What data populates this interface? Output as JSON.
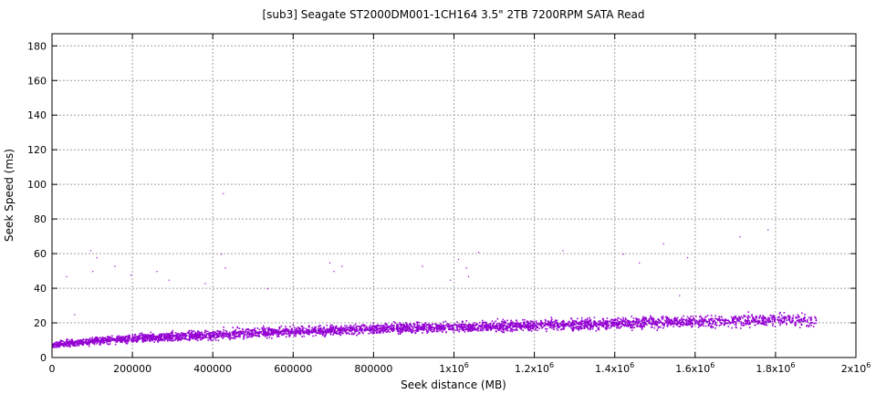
{
  "chart_data": {
    "type": "scatter",
    "title": "[sub3] Seagate ST2000DM001-1CH164 3.5\" 2TB 7200RPM SATA Read",
    "xlabel": "Seek distance (MB)",
    "ylabel": "Seek Speed (ms)",
    "xlim": [
      0,
      2000000
    ],
    "ylim": [
      0,
      187
    ],
    "grid": true,
    "x_ticks": [
      {
        "value": 0,
        "label": "0"
      },
      {
        "value": 200000,
        "label": "200000"
      },
      {
        "value": 400000,
        "label": "400000"
      },
      {
        "value": 600000,
        "label": "600000"
      },
      {
        "value": 800000,
        "label": "800000"
      },
      {
        "value": 1000000,
        "label": "1x10",
        "exp": "6"
      },
      {
        "value": 1200000,
        "label": "1.2x10",
        "exp": "6"
      },
      {
        "value": 1400000,
        "label": "1.4x10",
        "exp": "6"
      },
      {
        "value": 1600000,
        "label": "1.6x10",
        "exp": "6"
      },
      {
        "value": 1800000,
        "label": "1.8x10",
        "exp": "6"
      },
      {
        "value": 2000000,
        "label": "2x10",
        "exp": "6"
      }
    ],
    "y_ticks": [
      {
        "value": 0,
        "label": "0"
      },
      {
        "value": 20,
        "label": "20"
      },
      {
        "value": 40,
        "label": "40"
      },
      {
        "value": 60,
        "label": "60"
      },
      {
        "value": 80,
        "label": "80"
      },
      {
        "value": 100,
        "label": "100"
      },
      {
        "value": 120,
        "label": "120"
      },
      {
        "value": 140,
        "label": "140"
      },
      {
        "value": 160,
        "label": "160"
      },
      {
        "value": 180,
        "label": "180"
      }
    ],
    "series": [
      {
        "color": "#9400d3",
        "trend": [
          {
            "x": 0,
            "y": 7.5
          },
          {
            "x": 100000,
            "y": 10
          },
          {
            "x": 200000,
            "y": 11.5
          },
          {
            "x": 400000,
            "y": 13.5
          },
          {
            "x": 600000,
            "y": 15.5
          },
          {
            "x": 800000,
            "y": 17
          },
          {
            "x": 1000000,
            "y": 18
          },
          {
            "x": 1200000,
            "y": 19
          },
          {
            "x": 1400000,
            "y": 20
          },
          {
            "x": 1600000,
            "y": 21
          },
          {
            "x": 1800000,
            "y": 22
          },
          {
            "x": 1900000,
            "y": 22
          }
        ],
        "band_spread": [
          {
            "x": 0,
            "y": 4.5
          },
          {
            "x": 400000,
            "y": 6
          },
          {
            "x": 1000000,
            "y": 6
          },
          {
            "x": 1500000,
            "y": 7
          },
          {
            "x": 1900000,
            "y": 8
          }
        ],
        "outliers": [
          {
            "x": 35000,
            "y": 47
          },
          {
            "x": 55000,
            "y": 25
          },
          {
            "x": 95000,
            "y": 62
          },
          {
            "x": 100000,
            "y": 50
          },
          {
            "x": 110000,
            "y": 58
          },
          {
            "x": 155000,
            "y": 53
          },
          {
            "x": 195000,
            "y": 48
          },
          {
            "x": 260000,
            "y": 50
          },
          {
            "x": 290000,
            "y": 45
          },
          {
            "x": 380000,
            "y": 43
          },
          {
            "x": 420000,
            "y": 60
          },
          {
            "x": 425000,
            "y": 95
          },
          {
            "x": 430000,
            "y": 52
          },
          {
            "x": 535000,
            "y": 40
          },
          {
            "x": 690000,
            "y": 55
          },
          {
            "x": 700000,
            "y": 50
          },
          {
            "x": 720000,
            "y": 53
          },
          {
            "x": 920000,
            "y": 53
          },
          {
            "x": 990000,
            "y": 45
          },
          {
            "x": 1010000,
            "y": 57
          },
          {
            "x": 1030000,
            "y": 52
          },
          {
            "x": 1035000,
            "y": 47
          },
          {
            "x": 1060000,
            "y": 61
          },
          {
            "x": 1270000,
            "y": 62
          },
          {
            "x": 1420000,
            "y": 60
          },
          {
            "x": 1460000,
            "y": 55
          },
          {
            "x": 1520000,
            "y": 66
          },
          {
            "x": 1560000,
            "y": 36
          },
          {
            "x": 1580000,
            "y": 58
          },
          {
            "x": 1710000,
            "y": 70
          },
          {
            "x": 1780000,
            "y": 74
          }
        ]
      }
    ]
  }
}
